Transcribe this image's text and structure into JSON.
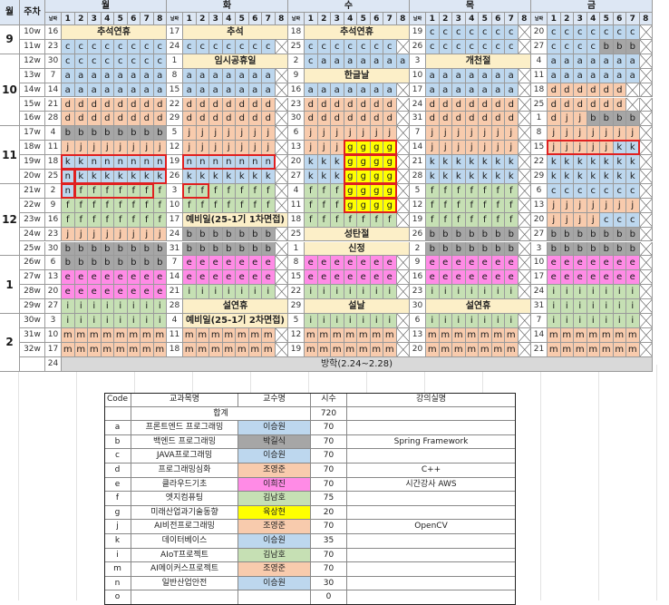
{
  "header": {
    "month_label": "월",
    "week_label": "주차",
    "week_small_label": "날짜",
    "day_names": [
      "월",
      "화",
      "수",
      "목",
      "금"
    ],
    "periods": [
      "1",
      "2",
      "3",
      "4",
      "5",
      "6",
      "7",
      "8"
    ]
  },
  "colors": {
    "a": "#bdd7ee",
    "b": "#a6a6a6",
    "c": "#bdd7ee",
    "d": "#f8cbad",
    "e": "#ff8be6",
    "f": "#c6e0b4",
    "g": "#ffff00",
    "j": "#f8cbad",
    "k": "#bdd7ee",
    "i": "#c6e0b4",
    "m": "#f8cbad",
    "n": "#bdd7ee",
    "event": "#fcefc8",
    "highlight_border": "#e02020"
  },
  "weeks": [
    {
      "w": "10w",
      "month": "9",
      "days": [
        {
          "date": "16",
          "event": "추석연휴"
        },
        {
          "date": "17",
          "event": "추석"
        },
        {
          "date": "18",
          "event": "추석연휴"
        },
        {
          "date": "19",
          "cells": "cccccccX"
        },
        {
          "date": "20",
          "cells": "cccccccX"
        }
      ]
    },
    {
      "w": "11w",
      "days": [
        {
          "date": "23",
          "cells": "cccccccc"
        },
        {
          "date": "24",
          "cells": "cccccccX"
        },
        {
          "date": "25",
          "cells": "cccccccX"
        },
        {
          "date": "26",
          "cells": "cccccccX"
        },
        {
          "date": "27",
          "cells": "ccccbbbX"
        }
      ]
    },
    {
      "w": "12w",
      "month": "10",
      "days": [
        {
          "date": "30",
          "cells": "cccccccc"
        },
        {
          "date": "1",
          "event": "임시공휴일"
        },
        {
          "date": "2",
          "cells": "caaaaaaa"
        },
        {
          "date": "3",
          "event": "개천절"
        },
        {
          "date": "4",
          "cells": "aaaaaaaX"
        }
      ]
    },
    {
      "w": "13w",
      "days": [
        {
          "date": "7",
          "cells": "aaaaaaaa"
        },
        {
          "date": "8",
          "cells": "aaaaaaaX"
        },
        {
          "date": "9",
          "event": "한글날"
        },
        {
          "date": "10",
          "cells": "aaaaaaaX"
        },
        {
          "date": "11",
          "cells": "aaaaaaaX"
        }
      ]
    },
    {
      "w": "14w",
      "days": [
        {
          "date": "14",
          "cells": "aaaaaaaa"
        },
        {
          "date": "15",
          "cells": "aaaaaaaX"
        },
        {
          "date": "16",
          "cells": "aaaaaaaX"
        },
        {
          "date": "17",
          "cells": "aaaaaaaX"
        },
        {
          "date": "18",
          "cells": "ddddddXX"
        }
      ]
    },
    {
      "w": "15w",
      "days": [
        {
          "date": "21",
          "cells": "dddddddd"
        },
        {
          "date": "22",
          "cells": "dddddddX"
        },
        {
          "date": "23",
          "cells": "dddddddX"
        },
        {
          "date": "24",
          "cells": "dddddddX"
        },
        {
          "date": "25",
          "cells": "ddddddXX"
        }
      ]
    },
    {
      "w": "16w",
      "days": [
        {
          "date": "28",
          "cells": "dddddddd"
        },
        {
          "date": "29",
          "cells": "dddddddX"
        },
        {
          "date": "30",
          "cells": "dddddddX"
        },
        {
          "date": "31",
          "cells": "dddddddX"
        },
        {
          "date": "1",
          "cells": "djjbbbbX"
        }
      ]
    },
    {
      "w": "17w",
      "month": "11",
      "days": [
        {
          "date": "4",
          "cells": "bbbbbbbb"
        },
        {
          "date": "5",
          "cells": "jjjjjjjX"
        },
        {
          "date": "6",
          "cells": "jjjjjjjX"
        },
        {
          "date": "7",
          "cells": "jjjjjjjX"
        },
        {
          "date": "8",
          "cells": "jjjjjjjX"
        }
      ]
    },
    {
      "w": "18w",
      "days": [
        {
          "date": "11",
          "cells": "jjjjjjjj"
        },
        {
          "date": "12",
          "cells": "jjjjjjjX"
        },
        {
          "date": "13",
          "cells": "jjjggggX"
        },
        {
          "date": "14",
          "cells": "jjjjjjjX"
        },
        {
          "date": "15",
          "cells": "jjjjjkkX"
        }
      ]
    },
    {
      "w": "19w",
      "days": [
        {
          "date": "18",
          "cells": "kknnnnnn"
        },
        {
          "date": "19",
          "cells": "nnnnnnnX"
        },
        {
          "date": "20",
          "cells": "kkkggggX"
        },
        {
          "date": "21",
          "cells": "kkkkkkkX"
        },
        {
          "date": "22",
          "cells": "kkkkkkkX"
        }
      ]
    },
    {
      "w": "20w",
      "days": [
        {
          "date": "25",
          "cells": "nkkkkkkk"
        },
        {
          "date": "26",
          "cells": "kkkkkkkX"
        },
        {
          "date": "27",
          "cells": "kkkggggX"
        },
        {
          "date": "28",
          "cells": "kkkkkkkX"
        },
        {
          "date": "29",
          "cells": "kkkkkkkX"
        }
      ]
    },
    {
      "w": "21w",
      "month": "12",
      "days": [
        {
          "date": "2",
          "cells": "nfffffff"
        },
        {
          "date": "3",
          "cells": "fffffffX"
        },
        {
          "date": "4",
          "cells": "fffggggX"
        },
        {
          "date": "5",
          "cells": "fffffffX"
        },
        {
          "date": "6",
          "cells": "cccccccX"
        }
      ]
    },
    {
      "w": "22w",
      "days": [
        {
          "date": "9",
          "cells": "ffffffff"
        },
        {
          "date": "10",
          "cells": "fffffffX"
        },
        {
          "date": "11",
          "cells": "fffggggX"
        },
        {
          "date": "12",
          "cells": "fffffffX"
        },
        {
          "date": "13",
          "cells": "jjjjjjjX"
        }
      ]
    },
    {
      "w": "23w",
      "days": [
        {
          "date": "16",
          "cells": "ffffffff"
        },
        {
          "date": "17",
          "event": "예비일(25-1기 1차면접)"
        },
        {
          "date": "18",
          "cells": "fffffffX"
        },
        {
          "date": "19",
          "cells": "fffffffX"
        },
        {
          "date": "20",
          "cells": "jjjjcccX"
        }
      ]
    },
    {
      "w": "24w",
      "days": [
        {
          "date": "23",
          "cells": "jjjjjjjj"
        },
        {
          "date": "24",
          "cells": "bbbbbbbX"
        },
        {
          "date": "25",
          "event": "성탄절"
        },
        {
          "date": "26",
          "cells": "bbbbbbbX"
        },
        {
          "date": "27",
          "cells": "bbbbbbbX"
        }
      ]
    },
    {
      "w": "25w",
      "days": [
        {
          "date": "30",
          "cells": "bbbbbbbb"
        },
        {
          "date": "31",
          "cells": "bbbbbbbX"
        },
        {
          "date": "1",
          "event": "신정"
        },
        {
          "date": "2",
          "cells": "bbbbbbbX"
        },
        {
          "date": "3",
          "cells": "bbbbbbbX"
        }
      ]
    },
    {
      "w": "26w",
      "month": "1",
      "days": [
        {
          "date": "6",
          "cells": "bbbbbbbb"
        },
        {
          "date": "7",
          "cells": "eeeeeeeX"
        },
        {
          "date": "8",
          "cells": "eeeeeeeX"
        },
        {
          "date": "9",
          "cells": "eeeeeeeX"
        },
        {
          "date": "10",
          "cells": "eeeeeeeX"
        }
      ]
    },
    {
      "w": "27w",
      "days": [
        {
          "date": "13",
          "cells": "eeeeeeee"
        },
        {
          "date": "14",
          "cells": "eeeeeeeX"
        },
        {
          "date": "15",
          "cells": "eeeeeeeX"
        },
        {
          "date": "16",
          "cells": "eeeeeeeX"
        },
        {
          "date": "17",
          "cells": "eeeeeeeX"
        }
      ]
    },
    {
      "w": "28w",
      "days": [
        {
          "date": "20",
          "cells": "eeeeeeee"
        },
        {
          "date": "21",
          "cells": "iiiiiiiX"
        },
        {
          "date": "22",
          "cells": "iiiiiiiX"
        },
        {
          "date": "23",
          "cells": "iiiiiiiX"
        },
        {
          "date": "24",
          "cells": "iiiiiiiX"
        }
      ]
    },
    {
      "w": "29w",
      "days": [
        {
          "date": "27",
          "cells": "iiiiiiii"
        },
        {
          "date": "28",
          "event": "설연휴"
        },
        {
          "date": "29",
          "event": "설날"
        },
        {
          "date": "30",
          "event": "설연휴"
        },
        {
          "date": "31",
          "cells": "iiiiiiiX"
        }
      ]
    },
    {
      "w": "30w",
      "month": "2",
      "days": [
        {
          "date": "3",
          "cells": "iiiiiiii"
        },
        {
          "date": "4",
          "event": "예비일(25-1기 2차면접)"
        },
        {
          "date": "5",
          "cells": "iiiiiiiX"
        },
        {
          "date": "6",
          "cells": "iiiiiiiX"
        },
        {
          "date": "7",
          "cells": "iiiiiiiX"
        }
      ]
    },
    {
      "w": "31w",
      "days": [
        {
          "date": "10",
          "cells": "mmmmmmmm"
        },
        {
          "date": "11",
          "cells": "mmmmmmmX"
        },
        {
          "date": "12",
          "cells": "mmmmmmmX"
        },
        {
          "date": "13",
          "cells": "mmmmmmmX"
        },
        {
          "date": "14",
          "cells": "mmmmmmmX"
        }
      ]
    },
    {
      "w": "32w",
      "days": [
        {
          "date": "17",
          "cells": "mmmmmmmm"
        },
        {
          "date": "18",
          "cells": "mmmmmmmX"
        },
        {
          "date": "19",
          "cells": "mmmmmmmX"
        },
        {
          "date": "20",
          "cells": "mmmmmmmX"
        },
        {
          "date": "21",
          "cells": "mmmmmmmX"
        }
      ]
    }
  ],
  "vacation": {
    "date": "24",
    "text": "방학(2.24~2.28)"
  },
  "highlights": [
    {
      "week": 8,
      "day": 2,
      "from": 4,
      "to": 7
    },
    {
      "week": 9,
      "day": 2,
      "from": 4,
      "to": 7
    },
    {
      "week": 10,
      "day": 2,
      "from": 4,
      "to": 7
    },
    {
      "week": 11,
      "day": 2,
      "from": 4,
      "to": 7
    },
    {
      "week": 12,
      "day": 2,
      "from": 4,
      "to": 7
    },
    {
      "week": 9,
      "day": 0,
      "from": 1,
      "to": 8
    },
    {
      "week": 9,
      "day": 1,
      "from": 1,
      "to": 7
    },
    {
      "week": 10,
      "day": 0,
      "from": 1,
      "to": 1
    },
    {
      "week": 10,
      "day": 0,
      "from": 2,
      "to": 8
    },
    {
      "week": 11,
      "day": 0,
      "from": 1,
      "to": 1
    },
    {
      "week": 11,
      "day": 0,
      "from": 2,
      "to": 7
    },
    {
      "week": 11,
      "day": 1,
      "from": 1,
      "to": 2
    },
    {
      "week": 8,
      "day": 4,
      "from": 1,
      "to": 7
    }
  ],
  "summary": {
    "headers": [
      "Code",
      "교과목명",
      "교수명",
      "시수",
      "강의실명"
    ],
    "total_label": "합계",
    "total_hours": "720",
    "rows": [
      {
        "code": "a",
        "subject": "프론트엔드 프로그래밍",
        "professor": "이승원",
        "hours": "70",
        "room": "",
        "color": "#bdd7ee"
      },
      {
        "code": "b",
        "subject": "백엔드 프로그래밍",
        "professor": "박길식",
        "hours": "70",
        "room": "Spring Framework",
        "color": "#a6a6a6"
      },
      {
        "code": "c",
        "subject": "JAVA프로그래밍",
        "professor": "이승원",
        "hours": "70",
        "room": "",
        "color": "#bdd7ee"
      },
      {
        "code": "d",
        "subject": "프로그래밍심화",
        "professor": "조영준",
        "hours": "70",
        "room": "C++",
        "color": "#f8cbad"
      },
      {
        "code": "e",
        "subject": "클라우드기초",
        "professor": "이희진",
        "hours": "70",
        "room": "시간강사 AWS",
        "color": "#ff8be6"
      },
      {
        "code": "f",
        "subject": "엣지컴퓨팅",
        "professor": "김남호",
        "hours": "75",
        "room": "",
        "color": "#c6e0b4"
      },
      {
        "code": "g",
        "subject": "미래산업과기술동향",
        "professor": "육상현",
        "hours": "20",
        "room": "",
        "color": "#ffff00"
      },
      {
        "code": "j",
        "subject": "AI비전프로그래밍",
        "professor": "조영준",
        "hours": "70",
        "room": "OpenCV",
        "color": "#f8cbad"
      },
      {
        "code": "k",
        "subject": "데이터베이스",
        "professor": "이승원",
        "hours": "35",
        "room": "",
        "color": "#bdd7ee"
      },
      {
        "code": "i",
        "subject": "AIoT프로젝트",
        "professor": "김남호",
        "hours": "70",
        "room": "",
        "color": "#c6e0b4"
      },
      {
        "code": "m",
        "subject": "AI메이커스프로젝트",
        "professor": "조영준",
        "hours": "70",
        "room": "",
        "color": "#f8cbad"
      },
      {
        "code": "n",
        "subject": "일반산업안전",
        "professor": "이승원",
        "hours": "30",
        "room": "",
        "color": "#bdd7ee"
      },
      {
        "code": "o",
        "subject": "",
        "professor": "",
        "hours": "0",
        "room": "",
        "color": "#ffffff"
      }
    ]
  }
}
